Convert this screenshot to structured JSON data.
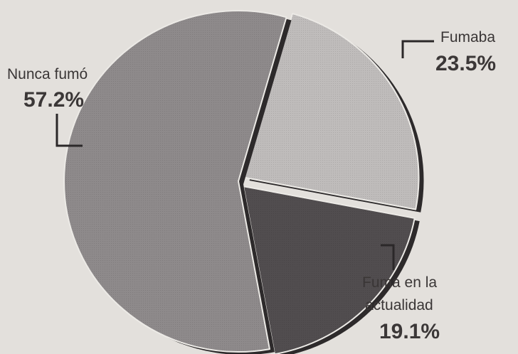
{
  "chart_data": {
    "type": "pie",
    "title": "",
    "slices": [
      {
        "label": "Nunca fumó",
        "value": 57.2,
        "value_label": "57.2%",
        "color": "#8e8a8b",
        "exploded": false
      },
      {
        "label": "Fumaba",
        "value": 23.5,
        "value_label": "23.5%",
        "color": "#bfbcbb",
        "exploded": true
      },
      {
        "label": "Fuma en la actualidad",
        "label_lines": [
          "Fuma en la",
          "actualidad"
        ],
        "value": 19.1,
        "value_label": "19.1%",
        "color": "#514d4f",
        "exploded": true
      }
    ],
    "legend": "none",
    "colors": {
      "background": "#e3e0dc",
      "edge": "#2d2a2b",
      "text": "#3a3636"
    }
  }
}
